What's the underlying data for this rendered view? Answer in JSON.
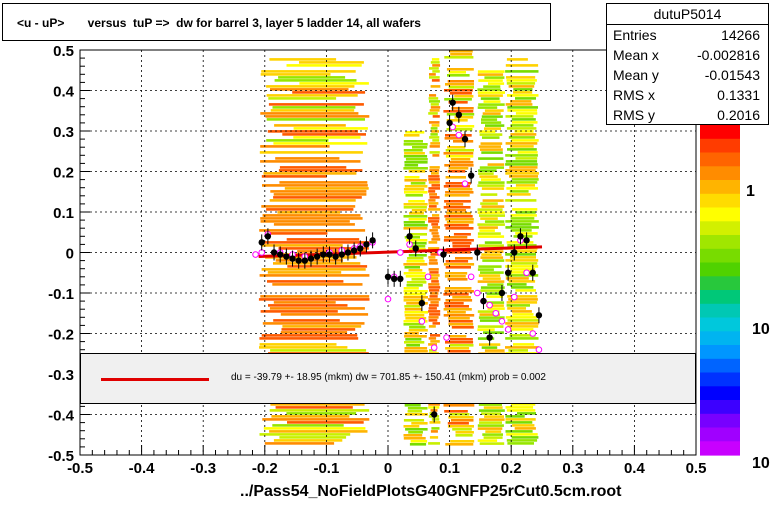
{
  "title": "<u - uP>       versus  tuP =>  dw for barrel 3, layer 5 ladder 14, all wafers",
  "footer": "../Pass54_NoFieldPlotsG40GNFP25rCut0.5cm.root",
  "stats": {
    "name": "dutuP5014",
    "rows": [
      {
        "key": "Entries",
        "value": "14266"
      },
      {
        "key": "Mean x",
        "value": "-0.002816"
      },
      {
        "key": "Mean y",
        "value": "-0.01543"
      },
      {
        "key": "RMS x",
        "value": "0.1331"
      },
      {
        "key": "RMS y",
        "value": "0.2016"
      }
    ]
  },
  "fit_text": "du =  -39.79 +- 18.95 (mkm) dw =  701.85 +- 150.41 (mkm) prob = 0.002",
  "colors": {
    "fit_line": "#e00000",
    "mean_points": "#000000",
    "open_points": "#ff00ff"
  },
  "chart_data": {
    "type": "scatter",
    "title": "<u - uP>       versus  tuP =>  dw for barrel 3, layer 5 ladder 14, all wafers",
    "xlim": [
      -0.5,
      0.5
    ],
    "ylim": [
      -0.5,
      0.5
    ],
    "x_ticks": [
      "-0.5",
      "-0.4",
      "-0.3",
      "-0.2",
      "-0.1",
      "0",
      "0.1",
      "0.2",
      "0.3",
      "0.4",
      "0.5"
    ],
    "y_ticks": [
      "-0.5",
      "-0.4",
      "-0.3",
      "-0.2",
      "-0.1",
      "0",
      "0.1",
      "0.2",
      "0.3",
      "0.4",
      "0.5"
    ],
    "grid": true,
    "colorbar_labels": [
      "1",
      "10",
      "10"
    ],
    "heat_bands": [
      {
        "x0": -0.21,
        "x1": -0.03,
        "y0": -0.48,
        "y1": 0.48,
        "density": "high"
      },
      {
        "x0": 0.025,
        "x1": 0.065,
        "y0": -0.48,
        "y1": 0.3,
        "density": "medium"
      },
      {
        "x0": 0.065,
        "x1": 0.085,
        "y0": -0.48,
        "y1": 0.48,
        "density": "high"
      },
      {
        "x0": 0.09,
        "x1": 0.14,
        "y0": -0.48,
        "y1": 0.5,
        "density": "high"
      },
      {
        "x0": 0.145,
        "x1": 0.19,
        "y0": -0.48,
        "y1": 0.45,
        "density": "medium"
      },
      {
        "x0": 0.19,
        "x1": 0.245,
        "y0": -0.48,
        "y1": 0.48,
        "density": "medium"
      }
    ],
    "mean_points": [
      {
        "x": -0.205,
        "y": 0.025
      },
      {
        "x": -0.195,
        "y": 0.04
      },
      {
        "x": -0.185,
        "y": 0.0
      },
      {
        "x": -0.175,
        "y": -0.005
      },
      {
        "x": -0.165,
        "y": -0.01
      },
      {
        "x": -0.155,
        "y": -0.015
      },
      {
        "x": -0.145,
        "y": -0.02
      },
      {
        "x": -0.135,
        "y": -0.02
      },
      {
        "x": -0.125,
        "y": -0.015
      },
      {
        "x": -0.115,
        "y": -0.01
      },
      {
        "x": -0.105,
        "y": -0.005
      },
      {
        "x": -0.095,
        "y": -0.005
      },
      {
        "x": -0.085,
        "y": -0.01
      },
      {
        "x": -0.075,
        "y": -0.005
      },
      {
        "x": -0.065,
        "y": 0.0
      },
      {
        "x": -0.055,
        "y": 0.005
      },
      {
        "x": -0.045,
        "y": 0.01
      },
      {
        "x": -0.035,
        "y": 0.02
      },
      {
        "x": -0.025,
        "y": 0.03
      },
      {
        "x": 0.0,
        "y": -0.06
      },
      {
        "x": 0.01,
        "y": -0.065
      },
      {
        "x": 0.02,
        "y": -0.065
      },
      {
        "x": 0.035,
        "y": 0.04
      },
      {
        "x": 0.045,
        "y": 0.01
      },
      {
        "x": 0.055,
        "y": -0.125
      },
      {
        "x": 0.075,
        "y": -0.4
      },
      {
        "x": 0.09,
        "y": -0.005
      },
      {
        "x": 0.1,
        "y": 0.32
      },
      {
        "x": 0.105,
        "y": 0.37
      },
      {
        "x": 0.115,
        "y": 0.34
      },
      {
        "x": 0.125,
        "y": 0.28
      },
      {
        "x": 0.135,
        "y": 0.19
      },
      {
        "x": 0.145,
        "y": 0.0
      },
      {
        "x": 0.155,
        "y": -0.12
      },
      {
        "x": 0.165,
        "y": -0.21
      },
      {
        "x": 0.185,
        "y": -0.1
      },
      {
        "x": 0.195,
        "y": -0.05
      },
      {
        "x": 0.205,
        "y": 0.0
      },
      {
        "x": 0.215,
        "y": 0.04
      },
      {
        "x": 0.225,
        "y": 0.03
      },
      {
        "x": 0.235,
        "y": -0.05
      },
      {
        "x": 0.245,
        "y": -0.155
      }
    ],
    "open_points": [
      {
        "x": -0.215,
        "y": -0.005
      },
      {
        "x": -0.205,
        "y": 0.0
      },
      {
        "x": -0.195,
        "y": 0.045
      },
      {
        "x": -0.175,
        "y": 0.0
      },
      {
        "x": -0.155,
        "y": -0.005
      },
      {
        "x": -0.135,
        "y": -0.01
      },
      {
        "x": -0.095,
        "y": 0.0
      },
      {
        "x": -0.075,
        "y": 0.005
      },
      {
        "x": -0.055,
        "y": 0.01
      },
      {
        "x": -0.045,
        "y": 0.015
      },
      {
        "x": -0.025,
        "y": 0.025
      },
      {
        "x": 0.0,
        "y": -0.115
      },
      {
        "x": 0.01,
        "y": -0.06
      },
      {
        "x": 0.02,
        "y": 0.0
      },
      {
        "x": 0.035,
        "y": 0.02
      },
      {
        "x": 0.055,
        "y": -0.17
      },
      {
        "x": 0.065,
        "y": -0.06
      },
      {
        "x": 0.075,
        "y": -0.235
      },
      {
        "x": 0.085,
        "y": 0.0
      },
      {
        "x": 0.095,
        "y": -0.21
      },
      {
        "x": 0.105,
        "y": 0.31
      },
      {
        "x": 0.115,
        "y": 0.29
      },
      {
        "x": 0.125,
        "y": 0.17
      },
      {
        "x": 0.135,
        "y": -0.06
      },
      {
        "x": 0.145,
        "y": -0.1
      },
      {
        "x": 0.155,
        "y": -0.12
      },
      {
        "x": 0.165,
        "y": -0.13
      },
      {
        "x": 0.175,
        "y": -0.15
      },
      {
        "x": 0.185,
        "y": -0.17
      },
      {
        "x": 0.195,
        "y": -0.19
      },
      {
        "x": 0.205,
        "y": -0.11
      },
      {
        "x": 0.215,
        "y": 0.03
      },
      {
        "x": 0.225,
        "y": -0.05
      },
      {
        "x": 0.235,
        "y": -0.2
      },
      {
        "x": 0.245,
        "y": -0.24
      }
    ],
    "fit_line": {
      "x": [
        -0.21,
        0.25
      ],
      "y": [
        -0.01,
        0.014
      ]
    }
  }
}
